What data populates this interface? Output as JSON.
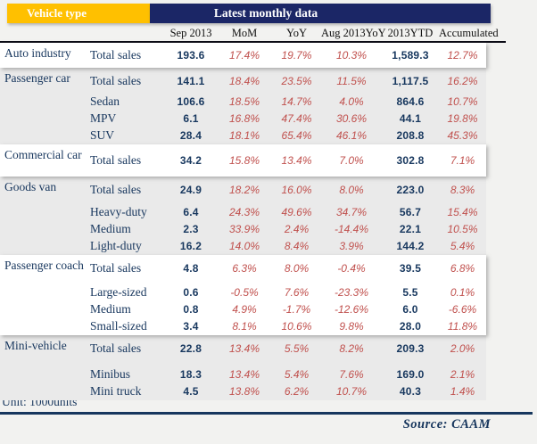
{
  "header": {
    "vehicle_type_label": "Vehicle type",
    "monthly_data_label": "Latest monthly data",
    "columns": [
      "Sep 2013",
      "MoM",
      "YoY",
      "Aug 2013YoY",
      "2013YTD",
      "Accumulated"
    ]
  },
  "sections": [
    {
      "vehicle_type": "Auto industry",
      "shaded": false,
      "rows": [
        {
          "label": "Total sales",
          "total": true,
          "values": [
            "193.6",
            "17.4%",
            "19.7%",
            "10.3%",
            "1,589.3",
            "12.7%"
          ]
        }
      ]
    },
    {
      "vehicle_type": "Passenger car",
      "shaded": true,
      "rows": [
        {
          "label": "Total sales",
          "total": true,
          "values": [
            "141.1",
            "18.4%",
            "23.5%",
            "11.5%",
            "1,117.5",
            "16.2%"
          ]
        },
        {
          "label": "Sedan",
          "total": false,
          "values": [
            "106.6",
            "18.5%",
            "14.7%",
            "4.0%",
            "864.6",
            "10.7%"
          ]
        },
        {
          "label": "MPV",
          "total": false,
          "values": [
            "6.1",
            "16.8%",
            "47.4%",
            "30.6%",
            "44.1",
            "19.8%"
          ]
        },
        {
          "label": "SUV",
          "total": false,
          "values": [
            "28.4",
            "18.1%",
            "65.4%",
            "46.1%",
            "208.8",
            "45.3%"
          ]
        }
      ]
    },
    {
      "vehicle_type": "Commercial car",
      "shaded": false,
      "rows": [
        {
          "label": "Total sales",
          "total": true,
          "values": [
            "34.2",
            "15.8%",
            "13.4%",
            "7.0%",
            "302.8",
            "7.1%"
          ]
        }
      ]
    },
    {
      "vehicle_type": "Goods van",
      "shaded": true,
      "rows": [
        {
          "label": "Total sales",
          "total": true,
          "values": [
            "24.9",
            "18.2%",
            "16.0%",
            "8.0%",
            "223.0",
            "8.3%"
          ]
        },
        {
          "label": "Heavy-duty",
          "total": false,
          "values": [
            "6.4",
            "24.3%",
            "49.6%",
            "34.7%",
            "56.7",
            "15.4%"
          ]
        },
        {
          "label": "Medium",
          "total": false,
          "values": [
            "2.3",
            "33.9%",
            "2.4%",
            "-14.4%",
            "22.1",
            "10.5%"
          ]
        },
        {
          "label": "Light-duty",
          "total": false,
          "values": [
            "16.2",
            "14.0%",
            "8.4%",
            "3.9%",
            "144.2",
            "5.4%"
          ]
        }
      ]
    },
    {
      "vehicle_type": "Passenger coach",
      "shaded": false,
      "rows": [
        {
          "label": "Total sales",
          "total": true,
          "values": [
            "4.8",
            "6.3%",
            "8.0%",
            "-0.4%",
            "39.5",
            "6.8%"
          ]
        },
        {
          "label": "Large-sized",
          "total": false,
          "values": [
            "0.6",
            "-0.5%",
            "7.6%",
            "-23.3%",
            "5.5",
            "0.1%"
          ]
        },
        {
          "label": "Medium",
          "total": false,
          "values": [
            "0.8",
            "4.9%",
            "-1.7%",
            "-12.6%",
            "6.0",
            "-6.6%"
          ]
        },
        {
          "label": "Small-sized",
          "total": false,
          "values": [
            "3.4",
            "8.1%",
            "10.6%",
            "9.8%",
            "28.0",
            "11.8%"
          ]
        }
      ]
    },
    {
      "vehicle_type": "Mini-vehicle",
      "shaded": true,
      "rows": [
        {
          "label": "Total sales",
          "total": true,
          "values": [
            "22.8",
            "13.4%",
            "5.5%",
            "8.2%",
            "209.3",
            "2.0%"
          ]
        },
        {
          "label": "Minibus",
          "total": false,
          "values": [
            "18.3",
            "13.4%",
            "5.4%",
            "7.6%",
            "169.0",
            "2.1%"
          ]
        },
        {
          "label": "Mini truck",
          "total": false,
          "values": [
            "4.5",
            "13.8%",
            "6.2%",
            "10.7%",
            "40.3",
            "1.4%"
          ]
        }
      ]
    }
  ],
  "footer": {
    "unit_note": "Unit: 1000units",
    "source": "Source: CAAM"
  },
  "colors": {
    "gold_header": "#FFC000",
    "navy_header": "#1b2666",
    "label_navy": "#17365d",
    "value_navy": "#17375e",
    "percent_red": "#c0504d",
    "shaded_row_bg": "#eaeaea"
  }
}
